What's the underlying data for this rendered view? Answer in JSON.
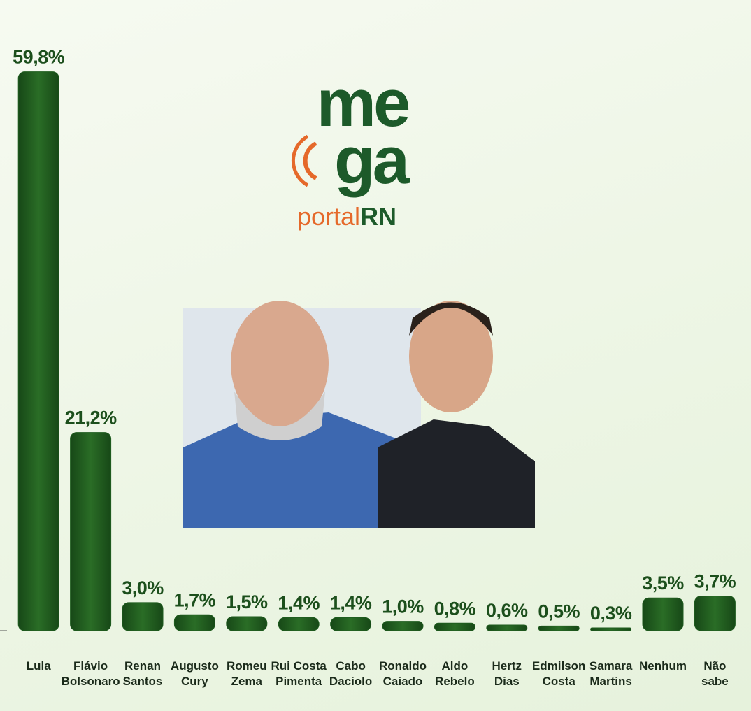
{
  "chart_data": {
    "type": "bar",
    "categories": [
      "Lula",
      "Flávio\nBolsonaro",
      "Renan\nSantos",
      "Augusto\nCury",
      "Romeu\nZema",
      "Rui Costa\nPimenta",
      "Cabo\nDaciolo",
      "Ronaldo\nCaiado",
      "Aldo\nRebelo",
      "Hertz\nDias",
      "Edmilson\nCosta",
      "Samara\nMartins",
      "Nenhum",
      "Não\nsabe"
    ],
    "values": [
      59.8,
      21.2,
      3.0,
      1.7,
      1.5,
      1.4,
      1.4,
      1.0,
      0.8,
      0.6,
      0.5,
      0.3,
      3.5,
      3.7
    ],
    "value_labels": [
      "59,8%",
      "21,2%",
      "3,0%",
      "1,7%",
      "1,5%",
      "1,4%",
      "1,4%",
      "1,0%",
      "0,8%",
      "0,6%",
      "0,5%",
      "0,3%",
      "3,5%",
      "3,7%"
    ],
    "color": "#1f5c1f",
    "ylim": [
      0,
      60
    ],
    "logo": {
      "line1": "me",
      "line2": "ga",
      "brand_a": "portal",
      "brand_b": "RN"
    }
  }
}
